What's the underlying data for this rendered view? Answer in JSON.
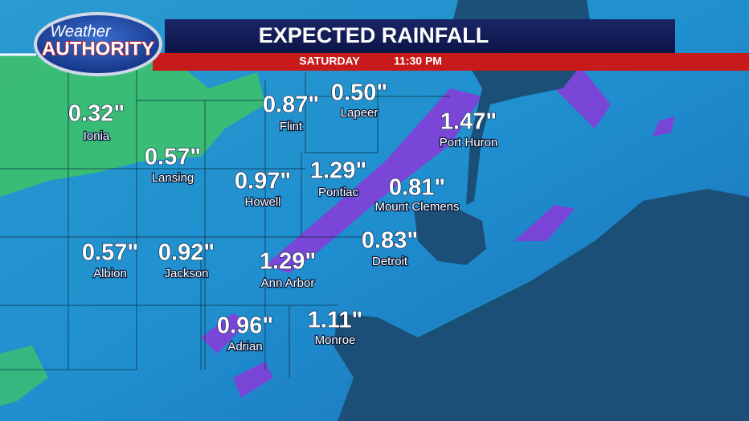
{
  "logo": {
    "line1": "Weather",
    "line2": "AUTHORITY"
  },
  "header": {
    "title": "EXPECTED RAINFALL",
    "day": "SATURDAY",
    "time": "11:30 PM"
  },
  "locations": [
    {
      "name": "Ionia",
      "amount": "0.32\""
    },
    {
      "name": "Lansing",
      "amount": "0.57\""
    },
    {
      "name": "Flint",
      "amount": "0.87\""
    },
    {
      "name": "Lapeer",
      "amount": "0.50\""
    },
    {
      "name": "Port Huron",
      "amount": "1.47\""
    },
    {
      "name": "Howell",
      "amount": "0.97\""
    },
    {
      "name": "Pontiac",
      "amount": "1.29\""
    },
    {
      "name": "Mount Clemens",
      "amount": "0.81\""
    },
    {
      "name": "Albion",
      "amount": "0.57\""
    },
    {
      "name": "Jackson",
      "amount": "0.92\""
    },
    {
      "name": "Detroit",
      "amount": "0.83\""
    },
    {
      "name": "Ann Arbor",
      "amount": "1.29\""
    },
    {
      "name": "Adrian",
      "amount": "0.96\""
    },
    {
      "name": "Monroe",
      "amount": "1.11\""
    }
  ]
}
